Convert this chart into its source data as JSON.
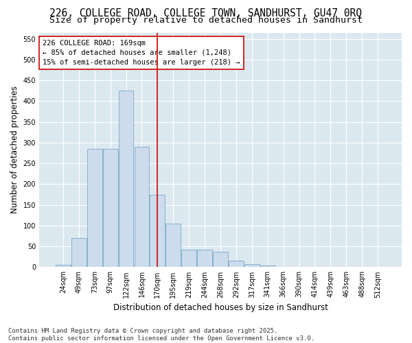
{
  "title_line1": "226, COLLEGE ROAD, COLLEGE TOWN, SANDHURST, GU47 0RQ",
  "title_line2": "Size of property relative to detached houses in Sandhurst",
  "xlabel": "Distribution of detached houses by size in Sandhurst",
  "ylabel": "Number of detached properties",
  "footnote": "Contains HM Land Registry data © Crown copyright and database right 2025.\nContains public sector information licensed under the Open Government Licence v3.0.",
  "bar_color": "#ccdcec",
  "bar_edge_color": "#7aaac8",
  "annotation_box_edgecolor": "#cc0000",
  "vline_color": "#cc0000",
  "bg_color": "#dce8f0",
  "grid_color": "#ffffff",
  "categories": [
    "24sqm",
    "49sqm",
    "73sqm",
    "97sqm",
    "122sqm",
    "146sqm",
    "170sqm",
    "195sqm",
    "219sqm",
    "244sqm",
    "268sqm",
    "292sqm",
    "317sqm",
    "341sqm",
    "366sqm",
    "390sqm",
    "414sqm",
    "439sqm",
    "463sqm",
    "488sqm",
    "512sqm"
  ],
  "values": [
    5,
    70,
    285,
    285,
    425,
    290,
    175,
    105,
    42,
    42,
    37,
    15,
    7,
    4,
    1,
    0,
    0,
    0,
    1,
    0,
    1
  ],
  "vline_index": 6,
  "annotation_line1": "226 COLLEGE ROAD: 169sqm",
  "annotation_line2": "← 85% of detached houses are smaller (1,248)",
  "annotation_line3": "15% of semi-detached houses are larger (218) →",
  "ylim": [
    0,
    565
  ],
  "yticks": [
    0,
    50,
    100,
    150,
    200,
    250,
    300,
    350,
    400,
    450,
    500,
    550
  ],
  "title_fontsize": 10.5,
  "subtitle_fontsize": 9.5,
  "annotation_fontsize": 7.5,
  "ylabel_fontsize": 8.5,
  "xlabel_fontsize": 8.5,
  "tick_fontsize": 7,
  "footnote_fontsize": 6.5
}
